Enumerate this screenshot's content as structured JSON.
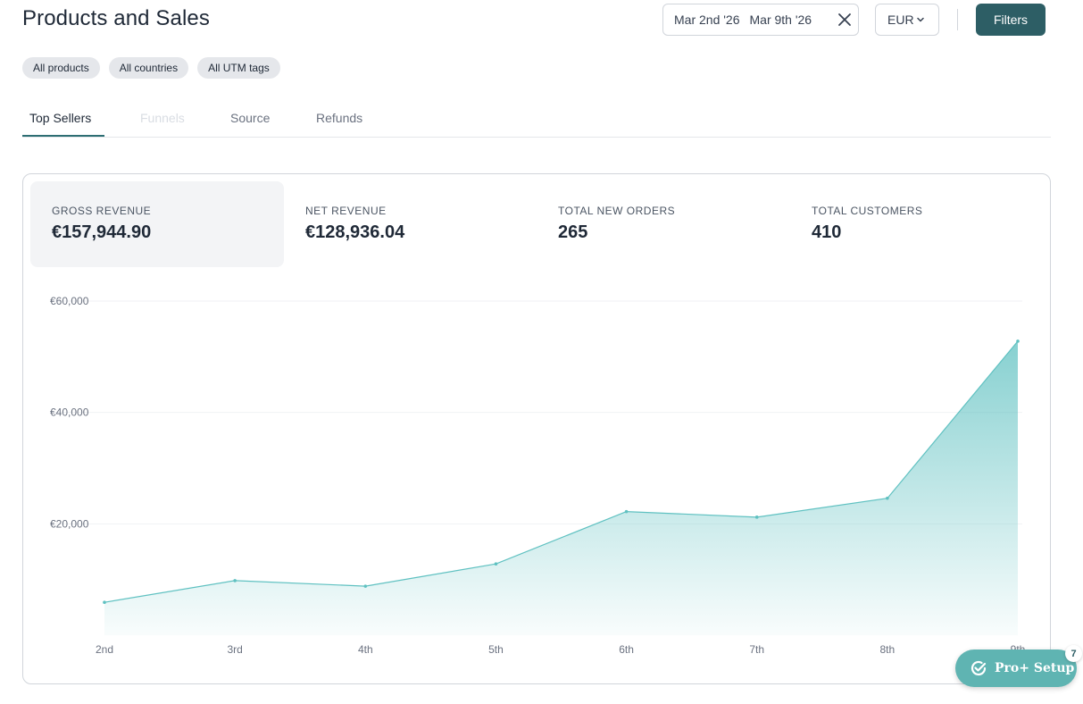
{
  "page": {
    "title": "Products and Sales"
  },
  "toolbar": {
    "date_start": "Mar 2nd '26",
    "date_end": "Mar 9th '26",
    "currency": "EUR",
    "filters_label": "Filters"
  },
  "chips": [
    "All products",
    "All countries",
    "All UTM tags"
  ],
  "tabs": [
    {
      "label": "Top Sellers",
      "state": "active"
    },
    {
      "label": "Funnels",
      "state": "disabled"
    },
    {
      "label": "Source",
      "state": "normal"
    },
    {
      "label": "Refunds",
      "state": "normal"
    }
  ],
  "stats": [
    {
      "label": "GROSS REVENUE",
      "value": "€157,944.90",
      "selected": true
    },
    {
      "label": "NET REVENUE",
      "value": "€128,936.04",
      "selected": false
    },
    {
      "label": "TOTAL NEW ORDERS",
      "value": "265",
      "selected": false
    },
    {
      "label": "TOTAL CUSTOMERS",
      "value": "410",
      "selected": false
    }
  ],
  "chart_data": {
    "type": "area",
    "categories": [
      "2nd",
      "3rd",
      "4th",
      "5th",
      "6th",
      "7th",
      "8th",
      "9th"
    ],
    "values": [
      5900,
      9800,
      8800,
      12800,
      22200,
      21200,
      24600,
      52800
    ],
    "ylim": [
      0,
      60000
    ],
    "yticks": [
      {
        "value": 20000,
        "label": "€20,000"
      },
      {
        "value": 40000,
        "label": "€40,000"
      },
      {
        "value": 60000,
        "label": "€60,000"
      }
    ],
    "grid": true,
    "color": "#5fc1c1"
  },
  "pro_setup": {
    "label": "Pro+ Setup",
    "badge_count": "7"
  },
  "colors": {
    "accent": "#2d5e65",
    "chart_line": "#5fc1c1",
    "pro_setup_bg": "#5fb4b2"
  }
}
